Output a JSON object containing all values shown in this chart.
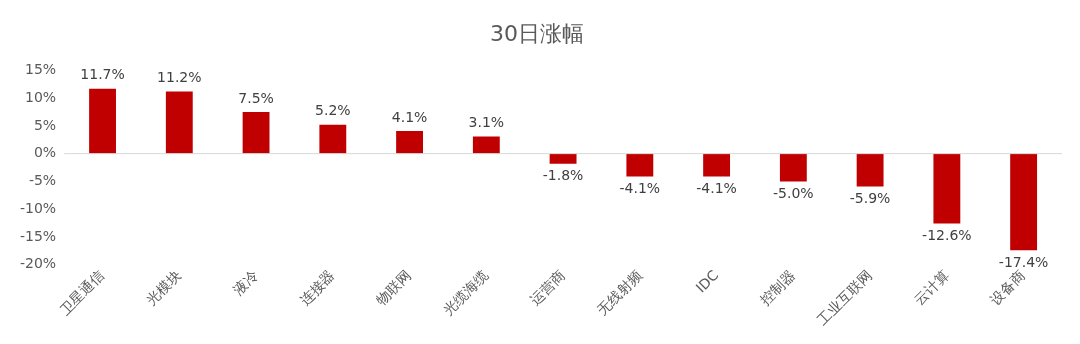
{
  "chart_data": {
    "type": "bar",
    "title": "30日涨幅",
    "categories": [
      "卫星通信",
      "光模块",
      "液冷",
      "连接器",
      "物联网",
      "光缆海缆",
      "运营商",
      "无线射频",
      "IDC",
      "控制器",
      "工业互联网",
      "云计算",
      "设备商"
    ],
    "values": [
      11.7,
      11.2,
      7.5,
      5.2,
      4.1,
      3.1,
      -1.8,
      -4.1,
      -4.1,
      -5.0,
      -5.9,
      -12.6,
      -17.4
    ],
    "value_labels": [
      "11.7%",
      "11.2%",
      "7.5%",
      "5.2%",
      "4.1%",
      "3.1%",
      "-1.8%",
      "-4.1%",
      "-4.1%",
      "-5.0%",
      "-5.9%",
      "-12.6%",
      "-17.4%"
    ],
    "color": "#c00000",
    "ylim": [
      -20,
      15
    ],
    "yticks": [
      {
        "value": -20,
        "label": "-20%"
      },
      {
        "value": -15,
        "label": "-15%"
      },
      {
        "value": -10,
        "label": "-10%"
      },
      {
        "value": -5,
        "label": "-5%"
      },
      {
        "value": 0,
        "label": "0%"
      },
      {
        "value": 5,
        "label": "5%"
      },
      {
        "value": 10,
        "label": "10%"
      },
      {
        "value": 15,
        "label": "15%"
      }
    ],
    "ref_lines": [
      {
        "axis": "y",
        "value": 0,
        "color": "#d9d9d9"
      }
    ],
    "grid": false,
    "legend": false
  }
}
